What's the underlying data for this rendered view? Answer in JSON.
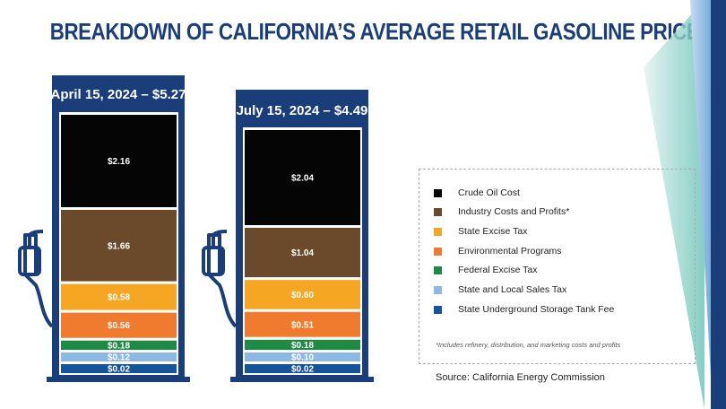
{
  "title": "BREAKDOWN OF CALIFORNIA’S AVERAGE RETAIL GASOLINE PRICES",
  "source": "Source: California Energy Commission",
  "footnote": "*Includes refinery, distribution, and marketing costs and profits",
  "colors": {
    "navy": "#1a3e79",
    "crude": "#050505",
    "industry": "#6b4a2c",
    "state_excise": "#f5a623",
    "environmental": "#f07b2e",
    "federal": "#1f8a43",
    "sales_tax": "#8db8e3",
    "ust_fee": "#16549a"
  },
  "chart_data": {
    "type": "bar",
    "stacked": true,
    "title": "BREAKDOWN OF CALIFORNIA’S AVERAGE RETAIL GASOLINE PRICES",
    "legend_position": "right",
    "categories": [
      "Crude Oil Cost",
      "Industry Costs and Profits*",
      "State Excise Tax",
      "Environmental Programs",
      "Federal Excise Tax",
      "State and Local Sales Tax",
      "State Underground Storage Tank Fee"
    ],
    "category_colors": [
      "#050505",
      "#6b4a2c",
      "#f5a623",
      "#f07b2e",
      "#1f8a43",
      "#8db8e3",
      "#16549a"
    ],
    "series": [
      {
        "name": "April 15, 2024 – $5.27",
        "values": [
          2.16,
          1.66,
          0.58,
          0.56,
          0.18,
          0.12,
          0.02
        ],
        "labels": [
          "$2.16",
          "$1.66",
          "$0.58",
          "$0.56",
          "$0.18",
          "$0.12",
          "$0.02"
        ]
      },
      {
        "name": "July 15, 2024 – $4.49",
        "values": [
          2.04,
          1.04,
          0.6,
          0.51,
          0.18,
          0.1,
          0.02
        ],
        "labels": [
          "$2.04",
          "$1.04",
          "$0.60",
          "$0.51",
          "$0.18",
          "$0.10",
          "$0.02"
        ]
      }
    ]
  }
}
